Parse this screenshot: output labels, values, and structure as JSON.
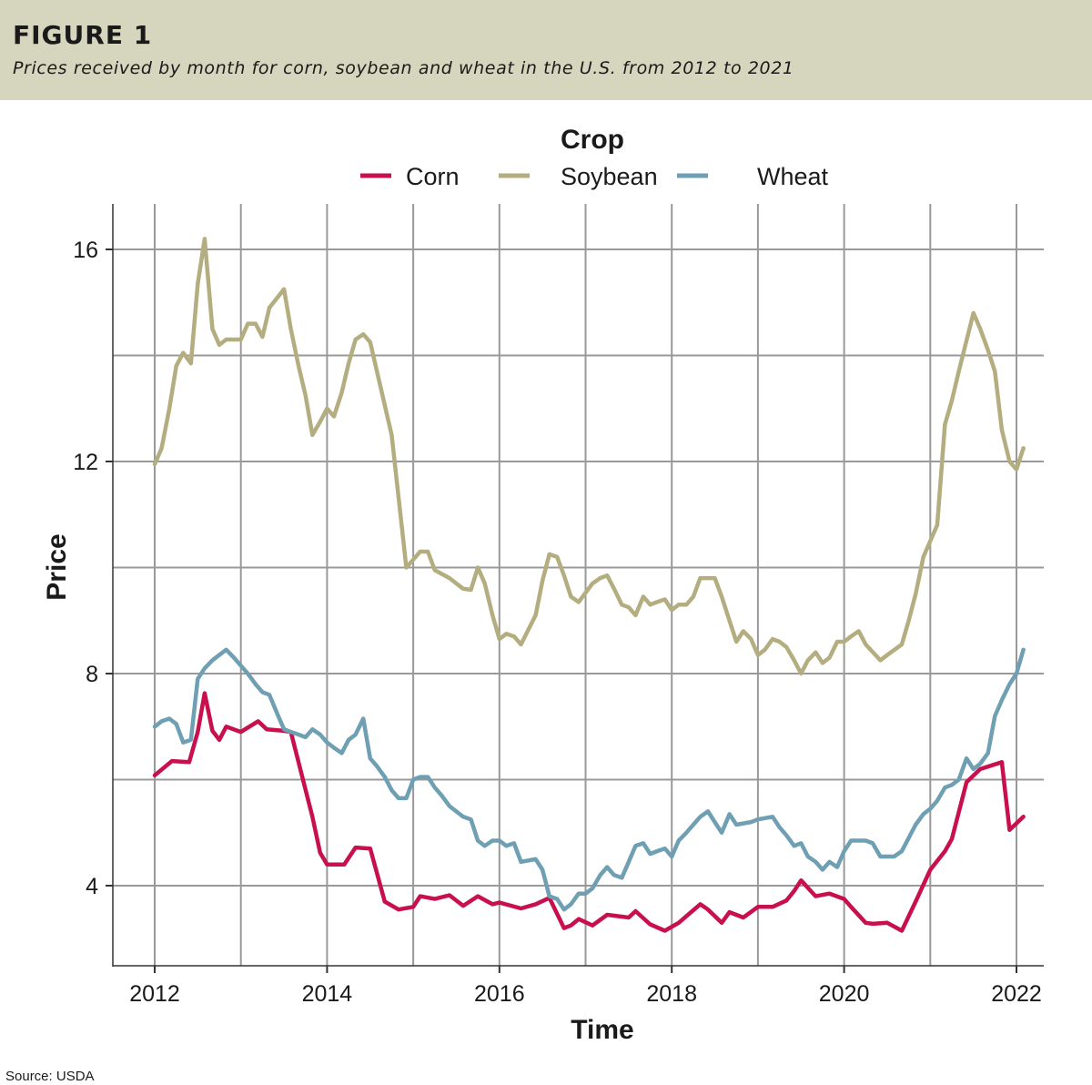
{
  "header": {
    "figure_label": "FIGURE 1",
    "subtitle": "Prices received by month for corn, soybean and wheat in the U.S. from 2012 to 2021"
  },
  "source": "Source: USDA",
  "colors": {
    "header_bg": "#d6d5bd",
    "corn": "#c8104f",
    "soybean": "#b3ad80",
    "wheat": "#6e9fb2",
    "grid": "#999999"
  },
  "chart_data": {
    "type": "line",
    "xlabel": "Time",
    "ylabel": "Price",
    "xlim": [
      2011.5,
      2022.3
    ],
    "ylim": [
      2.2,
      17.0
    ],
    "x_ticks": [
      2012,
      2014,
      2016,
      2018,
      2020,
      2022
    ],
    "x_tick_labels": [
      "2012",
      "2014",
      "2016",
      "2018",
      "2020",
      "2022"
    ],
    "y_ticks": [
      4,
      8,
      12,
      16
    ],
    "y_tick_labels": [
      "4",
      "8",
      "12",
      "16"
    ],
    "y_minor_grid": [
      6,
      10,
      14
    ],
    "x_minor_grid": [
      2013,
      2015,
      2017,
      2019,
      2021
    ],
    "grid": true,
    "legend": {
      "title": "Crop",
      "position": "top"
    },
    "series": [
      {
        "name": "Corn",
        "points": [
          [
            2012.0,
            6.08
          ],
          [
            2012.2,
            6.35
          ],
          [
            2012.4,
            6.33
          ],
          [
            2012.5,
            6.9
          ],
          [
            2012.58,
            7.63
          ],
          [
            2012.67,
            6.92
          ],
          [
            2012.75,
            6.75
          ],
          [
            2012.83,
            7.0
          ],
          [
            2013.0,
            6.9
          ],
          [
            2013.2,
            7.1
          ],
          [
            2013.3,
            6.95
          ],
          [
            2013.5,
            6.92
          ],
          [
            2013.58,
            6.9
          ],
          [
            2013.83,
            5.3
          ],
          [
            2013.92,
            4.62
          ],
          [
            2014.0,
            4.4
          ],
          [
            2014.2,
            4.4
          ],
          [
            2014.33,
            4.72
          ],
          [
            2014.5,
            4.7
          ],
          [
            2014.67,
            3.7
          ],
          [
            2014.83,
            3.55
          ],
          [
            2015.0,
            3.6
          ],
          [
            2015.08,
            3.8
          ],
          [
            2015.25,
            3.75
          ],
          [
            2015.42,
            3.82
          ],
          [
            2015.58,
            3.62
          ],
          [
            2015.75,
            3.8
          ],
          [
            2015.92,
            3.65
          ],
          [
            2016.0,
            3.68
          ],
          [
            2016.25,
            3.57
          ],
          [
            2016.42,
            3.65
          ],
          [
            2016.58,
            3.77
          ],
          [
            2016.75,
            3.2
          ],
          [
            2016.83,
            3.25
          ],
          [
            2016.92,
            3.37
          ],
          [
            2017.08,
            3.25
          ],
          [
            2017.25,
            3.45
          ],
          [
            2017.5,
            3.4
          ],
          [
            2017.58,
            3.52
          ],
          [
            2017.75,
            3.27
          ],
          [
            2017.92,
            3.15
          ],
          [
            2018.08,
            3.3
          ],
          [
            2018.33,
            3.65
          ],
          [
            2018.42,
            3.55
          ],
          [
            2018.58,
            3.3
          ],
          [
            2018.67,
            3.5
          ],
          [
            2018.83,
            3.4
          ],
          [
            2019.0,
            3.6
          ],
          [
            2019.17,
            3.6
          ],
          [
            2019.33,
            3.72
          ],
          [
            2019.42,
            3.9
          ],
          [
            2019.5,
            4.1
          ],
          [
            2019.67,
            3.8
          ],
          [
            2019.83,
            3.85
          ],
          [
            2020.0,
            3.75
          ],
          [
            2020.08,
            3.6
          ],
          [
            2020.25,
            3.3
          ],
          [
            2020.33,
            3.28
          ],
          [
            2020.5,
            3.3
          ],
          [
            2020.67,
            3.15
          ],
          [
            2020.83,
            3.7
          ],
          [
            2021.0,
            4.3
          ],
          [
            2021.17,
            4.65
          ],
          [
            2021.25,
            4.88
          ],
          [
            2021.42,
            5.95
          ],
          [
            2021.58,
            6.2
          ],
          [
            2021.83,
            6.33
          ],
          [
            2021.92,
            5.05
          ],
          [
            2022.08,
            5.3
          ]
        ]
      },
      {
        "name": "Soybean",
        "points": [
          [
            2012.0,
            11.95
          ],
          [
            2012.08,
            12.25
          ],
          [
            2012.17,
            13.0
          ],
          [
            2012.25,
            13.8
          ],
          [
            2012.33,
            14.05
          ],
          [
            2012.42,
            13.85
          ],
          [
            2012.5,
            15.35
          ],
          [
            2012.58,
            16.2
          ],
          [
            2012.67,
            14.5
          ],
          [
            2012.75,
            14.2
          ],
          [
            2012.83,
            14.3
          ],
          [
            2013.0,
            14.3
          ],
          [
            2013.08,
            14.6
          ],
          [
            2013.17,
            14.6
          ],
          [
            2013.25,
            14.35
          ],
          [
            2013.33,
            14.9
          ],
          [
            2013.5,
            15.25
          ],
          [
            2013.58,
            14.5
          ],
          [
            2013.67,
            13.8
          ],
          [
            2013.75,
            13.25
          ],
          [
            2013.83,
            12.5
          ],
          [
            2013.92,
            12.75
          ],
          [
            2014.0,
            13.0
          ],
          [
            2014.08,
            12.85
          ],
          [
            2014.17,
            13.3
          ],
          [
            2014.25,
            13.85
          ],
          [
            2014.33,
            14.3
          ],
          [
            2014.42,
            14.4
          ],
          [
            2014.5,
            14.25
          ],
          [
            2014.75,
            12.5
          ],
          [
            2014.92,
            10.0
          ],
          [
            2015.0,
            10.15
          ],
          [
            2015.08,
            10.3
          ],
          [
            2015.17,
            10.3
          ],
          [
            2015.25,
            9.95
          ],
          [
            2015.42,
            9.8
          ],
          [
            2015.58,
            9.6
          ],
          [
            2015.67,
            9.58
          ],
          [
            2015.75,
            10.0
          ],
          [
            2015.83,
            9.7
          ],
          [
            2015.92,
            9.1
          ],
          [
            2016.0,
            8.65
          ],
          [
            2016.08,
            8.75
          ],
          [
            2016.17,
            8.7
          ],
          [
            2016.25,
            8.55
          ],
          [
            2016.42,
            9.1
          ],
          [
            2016.5,
            9.75
          ],
          [
            2016.58,
            10.25
          ],
          [
            2016.67,
            10.2
          ],
          [
            2016.75,
            9.85
          ],
          [
            2016.83,
            9.45
          ],
          [
            2016.92,
            9.35
          ],
          [
            2017.08,
            9.7
          ],
          [
            2017.17,
            9.8
          ],
          [
            2017.25,
            9.85
          ],
          [
            2017.33,
            9.6
          ],
          [
            2017.42,
            9.3
          ],
          [
            2017.5,
            9.25
          ],
          [
            2017.58,
            9.1
          ],
          [
            2017.67,
            9.45
          ],
          [
            2017.75,
            9.3
          ],
          [
            2017.83,
            9.35
          ],
          [
            2017.92,
            9.4
          ],
          [
            2018.0,
            9.2
          ],
          [
            2018.08,
            9.3
          ],
          [
            2018.17,
            9.3
          ],
          [
            2018.25,
            9.45
          ],
          [
            2018.33,
            9.8
          ],
          [
            2018.42,
            9.8
          ],
          [
            2018.5,
            9.8
          ],
          [
            2018.58,
            9.45
          ],
          [
            2018.67,
            9.0
          ],
          [
            2018.75,
            8.6
          ],
          [
            2018.83,
            8.8
          ],
          [
            2018.92,
            8.65
          ],
          [
            2019.0,
            8.35
          ],
          [
            2019.08,
            8.45
          ],
          [
            2019.17,
            8.65
          ],
          [
            2019.25,
            8.6
          ],
          [
            2019.33,
            8.5
          ],
          [
            2019.42,
            8.25
          ],
          [
            2019.5,
            8.0
          ],
          [
            2019.58,
            8.25
          ],
          [
            2019.67,
            8.4
          ],
          [
            2019.75,
            8.2
          ],
          [
            2019.83,
            8.3
          ],
          [
            2019.92,
            8.6
          ],
          [
            2020.0,
            8.6
          ],
          [
            2020.08,
            8.7
          ],
          [
            2020.17,
            8.8
          ],
          [
            2020.25,
            8.55
          ],
          [
            2020.42,
            8.25
          ],
          [
            2020.5,
            8.35
          ],
          [
            2020.67,
            8.55
          ],
          [
            2020.75,
            9.0
          ],
          [
            2020.83,
            9.5
          ],
          [
            2020.92,
            10.2
          ],
          [
            2021.0,
            10.5
          ],
          [
            2021.08,
            10.8
          ],
          [
            2021.17,
            12.7
          ],
          [
            2021.25,
            13.15
          ],
          [
            2021.33,
            13.7
          ],
          [
            2021.5,
            14.8
          ],
          [
            2021.58,
            14.5
          ],
          [
            2021.67,
            14.1
          ],
          [
            2021.75,
            13.7
          ],
          [
            2021.83,
            12.6
          ],
          [
            2021.92,
            12.0
          ],
          [
            2022.0,
            11.85
          ],
          [
            2022.08,
            12.25
          ]
        ]
      },
      {
        "name": "Wheat",
        "points": [
          [
            2012.0,
            7.0
          ],
          [
            2012.08,
            7.1
          ],
          [
            2012.17,
            7.15
          ],
          [
            2012.25,
            7.05
          ],
          [
            2012.33,
            6.7
          ],
          [
            2012.42,
            6.75
          ],
          [
            2012.5,
            7.9
          ],
          [
            2012.58,
            8.1
          ],
          [
            2012.67,
            8.25
          ],
          [
            2012.75,
            8.35
          ],
          [
            2012.83,
            8.45
          ],
          [
            2012.92,
            8.3
          ],
          [
            2013.0,
            8.15
          ],
          [
            2013.08,
            8.0
          ],
          [
            2013.17,
            7.8
          ],
          [
            2013.25,
            7.65
          ],
          [
            2013.33,
            7.6
          ],
          [
            2013.42,
            7.25
          ],
          [
            2013.5,
            6.95
          ],
          [
            2013.58,
            6.9
          ],
          [
            2013.67,
            6.85
          ],
          [
            2013.75,
            6.8
          ],
          [
            2013.83,
            6.95
          ],
          [
            2013.92,
            6.85
          ],
          [
            2014.0,
            6.7
          ],
          [
            2014.08,
            6.6
          ],
          [
            2014.17,
            6.5
          ],
          [
            2014.25,
            6.75
          ],
          [
            2014.33,
            6.85
          ],
          [
            2014.42,
            7.15
          ],
          [
            2014.5,
            6.4
          ],
          [
            2014.58,
            6.25
          ],
          [
            2014.67,
            6.05
          ],
          [
            2014.75,
            5.8
          ],
          [
            2014.83,
            5.65
          ],
          [
            2014.92,
            5.65
          ],
          [
            2015.0,
            6.0
          ],
          [
            2015.08,
            6.05
          ],
          [
            2015.17,
            6.05
          ],
          [
            2015.25,
            5.85
          ],
          [
            2015.33,
            5.7
          ],
          [
            2015.42,
            5.5
          ],
          [
            2015.5,
            5.4
          ],
          [
            2015.58,
            5.3
          ],
          [
            2015.67,
            5.25
          ],
          [
            2015.75,
            4.85
          ],
          [
            2015.83,
            4.75
          ],
          [
            2015.92,
            4.85
          ],
          [
            2016.0,
            4.85
          ],
          [
            2016.08,
            4.75
          ],
          [
            2016.17,
            4.8
          ],
          [
            2016.25,
            4.45
          ],
          [
            2016.42,
            4.5
          ],
          [
            2016.5,
            4.3
          ],
          [
            2016.58,
            3.8
          ],
          [
            2016.67,
            3.75
          ],
          [
            2016.75,
            3.55
          ],
          [
            2016.83,
            3.65
          ],
          [
            2016.92,
            3.85
          ],
          [
            2017.0,
            3.85
          ],
          [
            2017.08,
            3.95
          ],
          [
            2017.17,
            4.2
          ],
          [
            2017.25,
            4.35
          ],
          [
            2017.33,
            4.2
          ],
          [
            2017.42,
            4.15
          ],
          [
            2017.5,
            4.45
          ],
          [
            2017.58,
            4.75
          ],
          [
            2017.67,
            4.8
          ],
          [
            2017.75,
            4.6
          ],
          [
            2017.83,
            4.65
          ],
          [
            2017.92,
            4.7
          ],
          [
            2018.0,
            4.55
          ],
          [
            2018.08,
            4.85
          ],
          [
            2018.17,
            5.0
          ],
          [
            2018.25,
            5.15
          ],
          [
            2018.33,
            5.3
          ],
          [
            2018.42,
            5.4
          ],
          [
            2018.5,
            5.2
          ],
          [
            2018.58,
            5.0
          ],
          [
            2018.67,
            5.35
          ],
          [
            2018.75,
            5.15
          ],
          [
            2018.92,
            5.2
          ],
          [
            2019.0,
            5.25
          ],
          [
            2019.17,
            5.3
          ],
          [
            2019.25,
            5.1
          ],
          [
            2019.33,
            4.95
          ],
          [
            2019.42,
            4.75
          ],
          [
            2019.5,
            4.8
          ],
          [
            2019.58,
            4.55
          ],
          [
            2019.67,
            4.45
          ],
          [
            2019.75,
            4.3
          ],
          [
            2019.83,
            4.45
          ],
          [
            2019.92,
            4.35
          ],
          [
            2020.0,
            4.65
          ],
          [
            2020.08,
            4.85
          ],
          [
            2020.17,
            4.85
          ],
          [
            2020.25,
            4.85
          ],
          [
            2020.33,
            4.8
          ],
          [
            2020.42,
            4.55
          ],
          [
            2020.5,
            4.55
          ],
          [
            2020.58,
            4.55
          ],
          [
            2020.67,
            4.65
          ],
          [
            2020.75,
            4.9
          ],
          [
            2020.83,
            5.15
          ],
          [
            2020.92,
            5.35
          ],
          [
            2021.0,
            5.45
          ],
          [
            2021.08,
            5.6
          ],
          [
            2021.17,
            5.85
          ],
          [
            2021.25,
            5.9
          ],
          [
            2021.33,
            6.0
          ],
          [
            2021.42,
            6.4
          ],
          [
            2021.5,
            6.2
          ],
          [
            2021.58,
            6.3
          ],
          [
            2021.67,
            6.5
          ],
          [
            2021.75,
            7.2
          ],
          [
            2021.83,
            7.5
          ],
          [
            2021.92,
            7.8
          ],
          [
            2022.0,
            8.0
          ],
          [
            2022.08,
            8.45
          ]
        ]
      }
    ]
  }
}
